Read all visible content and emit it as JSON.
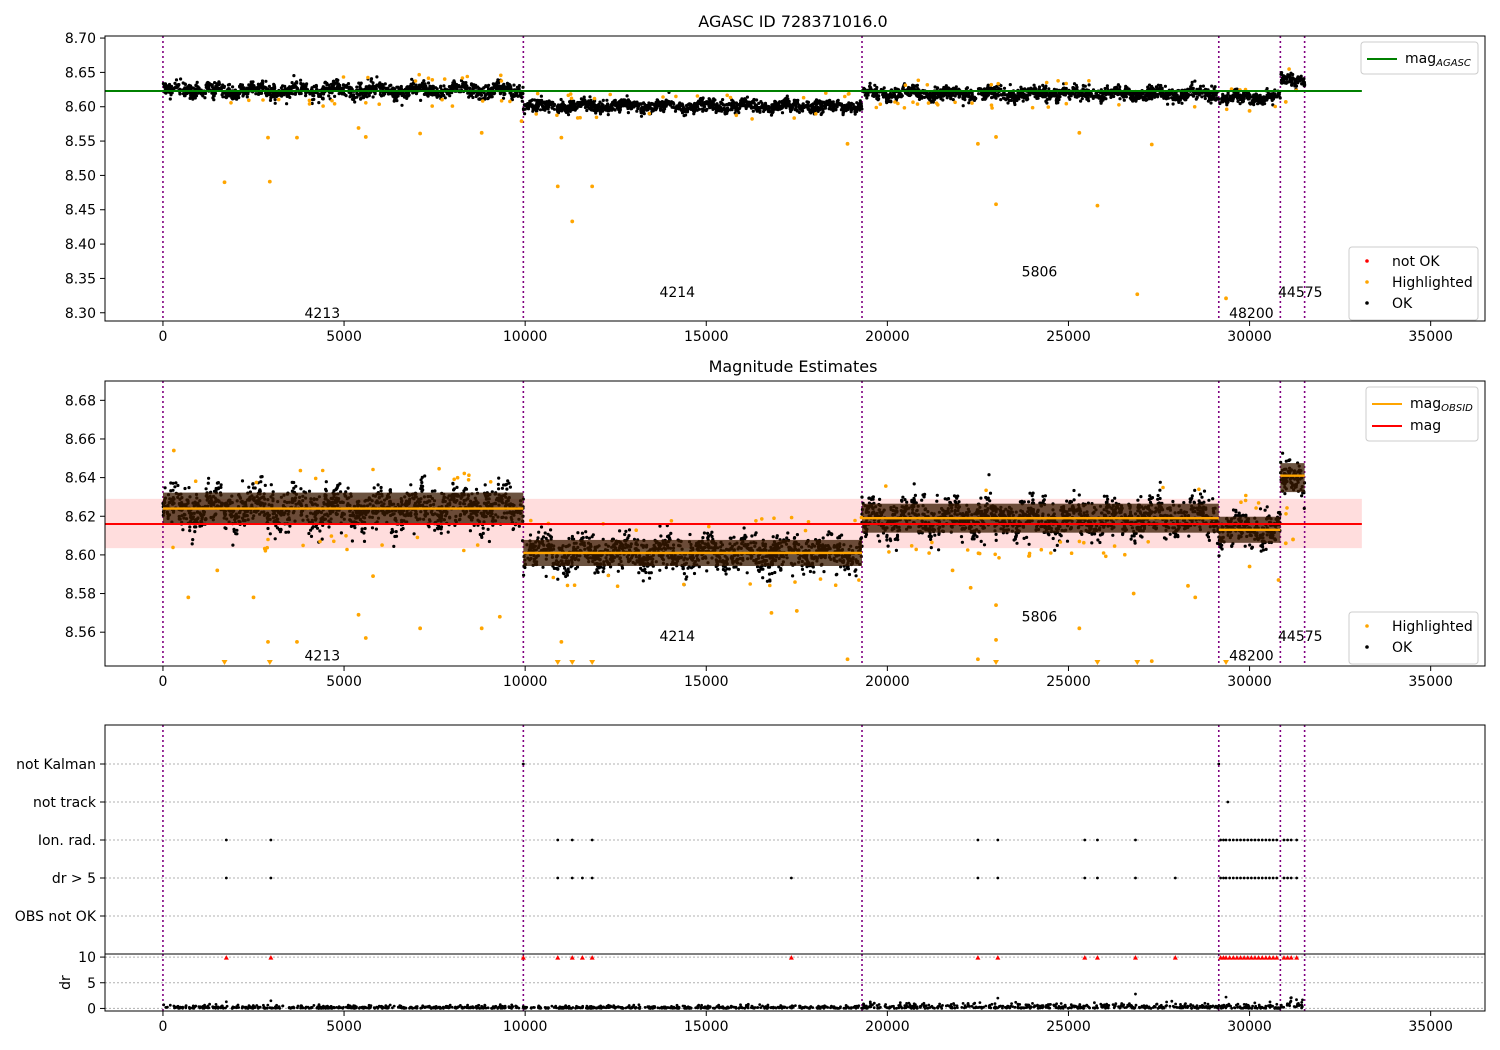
{
  "chart_data": [
    {
      "id": "top",
      "type": "scatter",
      "title": "AGASC ID 728371016.0",
      "xlim": [
        -1600,
        36500
      ],
      "ylim": [
        8.288,
        8.703
      ],
      "xticks": [
        0,
        5000,
        10000,
        15000,
        20000,
        25000,
        30000,
        35000
      ],
      "xtick_labels": [
        "0",
        "5000",
        "10000",
        "15000",
        "20000",
        "25000",
        "30000",
        "35000"
      ],
      "yticks": [
        8.3,
        8.35,
        8.4,
        8.45,
        8.5,
        8.55,
        8.6,
        8.65,
        8.7
      ],
      "ytick_labels": [
        "8.30",
        "8.35",
        "8.40",
        "8.45",
        "8.50",
        "8.55",
        "8.60",
        "8.65",
        "8.70"
      ],
      "obs_boundaries": [
        0,
        9950,
        19300,
        29150,
        30850,
        31520
      ],
      "obs_labels": [
        {
          "text": "4213",
          "x": 4400,
          "y": 8.3
        },
        {
          "text": "4214",
          "x": 14200,
          "y": 8.33
        },
        {
          "text": "5806",
          "x": 24200,
          "y": 8.36
        },
        {
          "text": "48200",
          "x": 30050,
          "y": 8.3
        },
        {
          "text": "44575",
          "x": 31400,
          "y": 8.33
        }
      ],
      "segments": [
        {
          "x0": 0,
          "x1": 9950,
          "center": 8.624,
          "spread": 0.011
        },
        {
          "x0": 9950,
          "x1": 19300,
          "center": 8.601,
          "spread": 0.009
        },
        {
          "x0": 19300,
          "x1": 29150,
          "center": 8.619,
          "spread": 0.01
        },
        {
          "x0": 29150,
          "x1": 30850,
          "center": 8.613,
          "spread": 0.009
        },
        {
          "x0": 30850,
          "x1": 31520,
          "center": 8.64,
          "spread": 0.01
        }
      ],
      "hlines": [
        {
          "name": "mag_AGASC",
          "y": 8.623,
          "x0": -1600,
          "x1": 33100,
          "color": "#008000"
        }
      ],
      "outliers": [
        {
          "x": 1700,
          "y": 8.49
        },
        {
          "x": 2950,
          "y": 8.491
        },
        {
          "x": 2900,
          "y": 8.555
        },
        {
          "x": 3700,
          "y": 8.555
        },
        {
          "x": 5400,
          "y": 8.569
        },
        {
          "x": 5600,
          "y": 8.556
        },
        {
          "x": 7100,
          "y": 8.561
        },
        {
          "x": 8800,
          "y": 8.562
        },
        {
          "x": 9900,
          "y": 8.579
        },
        {
          "x": 11000,
          "y": 8.555
        },
        {
          "x": 10900,
          "y": 8.484
        },
        {
          "x": 11850,
          "y": 8.484
        },
        {
          "x": 11300,
          "y": 8.433
        },
        {
          "x": 18900,
          "y": 8.546
        },
        {
          "x": 22500,
          "y": 8.546
        },
        {
          "x": 23000,
          "y": 8.458
        },
        {
          "x": 23000,
          "y": 8.556
        },
        {
          "x": 25800,
          "y": 8.456
        },
        {
          "x": 25300,
          "y": 8.562
        },
        {
          "x": 26900,
          "y": 8.327
        },
        {
          "x": 27300,
          "y": 8.545
        },
        {
          "x": 29350,
          "y": 8.321
        },
        {
          "x": 30000,
          "y": 8.594
        },
        {
          "x": 31000,
          "y": 8.607
        }
      ],
      "legend": {
        "placement": "lower-right",
        "entries": [
          {
            "label": "not OK",
            "color": "#ff0000"
          },
          {
            "label": "Highlighted",
            "color": "#ffa500"
          },
          {
            "label": "OK",
            "color": "#000000"
          }
        ]
      },
      "legend2": {
        "placement": "upper-right",
        "entries": [
          {
            "label": "mag",
            "subscript": "AGASC",
            "color": "#008000"
          }
        ]
      }
    },
    {
      "id": "middle",
      "type": "scatter",
      "title": "Magnitude Estimates",
      "xlim": [
        -1600,
        36500
      ],
      "ylim": [
        8.5425,
        8.69
      ],
      "xticks": [
        0,
        5000,
        10000,
        15000,
        20000,
        25000,
        30000,
        35000
      ],
      "xtick_labels": [
        "0",
        "5000",
        "10000",
        "15000",
        "20000",
        "25000",
        "30000",
        "35000"
      ],
      "yticks": [
        8.56,
        8.58,
        8.6,
        8.62,
        8.64,
        8.66,
        8.68
      ],
      "ytick_labels": [
        "8.56",
        "8.58",
        "8.60",
        "8.62",
        "8.64",
        "8.66",
        "8.68"
      ],
      "obs_boundaries": [
        0,
        9950,
        19300,
        29150,
        30850,
        31520
      ],
      "obs_labels": [
        {
          "text": "4213",
          "x": 4400,
          "y": 8.548
        },
        {
          "text": "4214",
          "x": 14200,
          "y": 8.558
        },
        {
          "text": "5806",
          "x": 24200,
          "y": 8.568
        },
        {
          "text": "48200",
          "x": 30050,
          "y": 8.548
        },
        {
          "text": "44575",
          "x": 31400,
          "y": 8.558
        }
      ],
      "segments": [
        {
          "x0": 0,
          "x1": 9950,
          "center": 8.624,
          "spread": 0.011
        },
        {
          "x0": 9950,
          "x1": 19300,
          "center": 8.601,
          "spread": 0.009
        },
        {
          "x0": 19300,
          "x1": 29150,
          "center": 8.619,
          "spread": 0.01
        },
        {
          "x0": 29150,
          "x1": 30850,
          "center": 8.613,
          "spread": 0.009
        },
        {
          "x0": 30850,
          "x1": 31520,
          "center": 8.64,
          "spread": 0.01
        }
      ],
      "band": {
        "y0": 8.6035,
        "y1": 8.629,
        "x0": -1600,
        "x1": 33100,
        "color": "#ffdddd"
      },
      "hlines": [
        {
          "name": "mag",
          "y": 8.616,
          "x0": -1600,
          "x1": 33100,
          "color": "#ff0000"
        }
      ],
      "obs_mags": [
        {
          "x0": 0,
          "x1": 9950,
          "y": 8.624
        },
        {
          "x0": 9950,
          "x1": 19300,
          "y": 8.601
        },
        {
          "x0": 19300,
          "x1": 29150,
          "y": 8.619
        },
        {
          "x0": 29150,
          "x1": 30850,
          "y": 8.613
        },
        {
          "x0": 30850,
          "x1": 31520,
          "y": 8.641
        }
      ],
      "outliers": [
        {
          "x": 300,
          "y": 8.654
        },
        {
          "x": 700,
          "y": 8.578
        },
        {
          "x": 1500,
          "y": 8.592
        },
        {
          "x": 2500,
          "y": 8.578
        },
        {
          "x": 2900,
          "y": 8.555
        },
        {
          "x": 3700,
          "y": 8.555
        },
        {
          "x": 5400,
          "y": 8.569
        },
        {
          "x": 5600,
          "y": 8.557
        },
        {
          "x": 5800,
          "y": 8.589
        },
        {
          "x": 7100,
          "y": 8.562
        },
        {
          "x": 8800,
          "y": 8.562
        },
        {
          "x": 9300,
          "y": 8.568
        },
        {
          "x": 11000,
          "y": 8.555
        },
        {
          "x": 16800,
          "y": 8.57
        },
        {
          "x": 17500,
          "y": 8.571
        },
        {
          "x": 18900,
          "y": 8.546
        },
        {
          "x": 21800,
          "y": 8.592
        },
        {
          "x": 22300,
          "y": 8.583
        },
        {
          "x": 22500,
          "y": 8.546
        },
        {
          "x": 23000,
          "y": 8.556
        },
        {
          "x": 23000,
          "y": 8.574
        },
        {
          "x": 25300,
          "y": 8.562
        },
        {
          "x": 26800,
          "y": 8.58
        },
        {
          "x": 27300,
          "y": 8.545
        },
        {
          "x": 28300,
          "y": 8.584
        },
        {
          "x": 28500,
          "y": 8.578
        },
        {
          "x": 30000,
          "y": 8.594
        },
        {
          "x": 30800,
          "y": 8.587
        },
        {
          "x": 31000,
          "y": 8.606
        },
        {
          "x": 31200,
          "y": 8.608
        }
      ],
      "clipped_low": [
        1700,
        2950,
        10900,
        11300,
        11850,
        23000,
        25800,
        26900,
        29350
      ],
      "legend": {
        "placement": "lower-right",
        "entries": [
          {
            "label": "Highlighted",
            "color": "#ffa500"
          },
          {
            "label": "OK",
            "color": "#000000"
          }
        ]
      },
      "legend2": {
        "placement": "upper-right",
        "entries": [
          {
            "label": "mag",
            "subscript": "OBSID",
            "color": "#ffa500"
          },
          {
            "label": "mag",
            "subscript": "",
            "color": "#ff0000"
          }
        ]
      }
    },
    {
      "id": "flags",
      "type": "scatter",
      "xlim": [
        -1600,
        36500
      ],
      "categories": [
        "not Kalman",
        "not track",
        "Ion. rad.",
        "dr > 5",
        "OBS not OK"
      ],
      "obs_boundaries": [
        0,
        9950,
        19300,
        29150,
        30850,
        31520
      ],
      "flags": {
        "not Kalman": [
          9950,
          29150
        ],
        "not track": [
          29400
        ],
        "Ion. rad.": [
          1750,
          2980,
          10900,
          11300,
          11850,
          22500,
          23050,
          25450,
          25800,
          26850,
          29200,
          29280,
          29350,
          29450,
          29550,
          29650,
          29750,
          29850,
          29950,
          30050,
          30150,
          30250,
          30350,
          30450,
          30550,
          30650,
          30750,
          30950,
          31050,
          31150,
          31300
        ],
        "dr > 5": [
          1750,
          2980,
          10900,
          11300,
          11580,
          11850,
          17350,
          22500,
          23050,
          25450,
          25800,
          26850,
          27950,
          29200,
          29280,
          29350,
          29450,
          29550,
          29650,
          29750,
          29850,
          29950,
          30050,
          30150,
          30250,
          30350,
          30450,
          30550,
          30650,
          30750,
          30950,
          31050,
          31150,
          31300
        ],
        "OBS not OK": []
      }
    },
    {
      "id": "dr",
      "type": "scatter",
      "xlim": [
        -1600,
        36500
      ],
      "ylabel": "dr",
      "ylim": [
        -0.5,
        10.6
      ],
      "yticks": [
        0,
        5,
        10
      ],
      "ytick_labels": [
        "0",
        "5",
        "10"
      ],
      "xticks": [
        0,
        5000,
        10000,
        15000,
        20000,
        25000,
        30000,
        35000
      ],
      "xtick_labels": [
        "0",
        "5000",
        "10000",
        "15000",
        "20000",
        "25000",
        "30000",
        "35000"
      ],
      "obs_boundaries": [
        0,
        9950,
        19300,
        29150,
        30850,
        31520
      ],
      "clipped_high": [
        1750,
        2980,
        9950,
        10900,
        11300,
        11580,
        11850,
        17350,
        22500,
        23050,
        25450,
        25800,
        26850,
        27950,
        29200,
        29280,
        29350,
        29450,
        29550,
        29650,
        29750,
        29850,
        29950,
        30050,
        30150,
        30250,
        30350,
        30450,
        30550,
        30650,
        30750,
        30950,
        31050,
        31150,
        31300
      ],
      "outliers": [
        {
          "x": 1750,
          "y": 1.3
        },
        {
          "x": 2980,
          "y": 1.5
        },
        {
          "x": 23050,
          "y": 2.0
        },
        {
          "x": 26850,
          "y": 2.8
        },
        {
          "x": 29350,
          "y": 2.2
        }
      ]
    }
  ]
}
